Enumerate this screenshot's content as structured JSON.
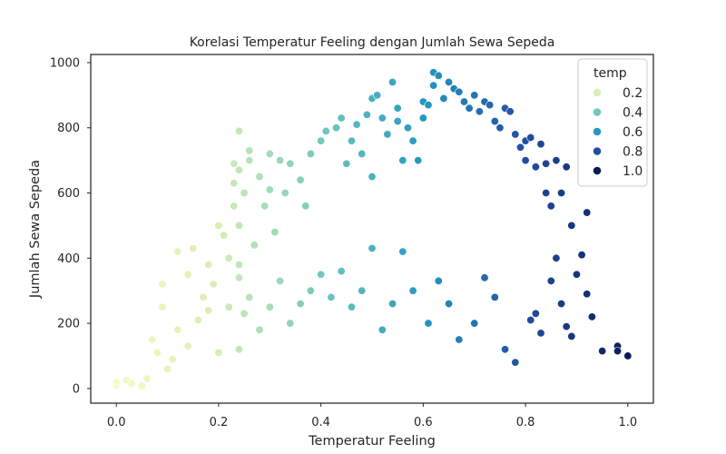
{
  "chart_data": {
    "type": "scatter",
    "title": "Korelasi Temperatur Feeling dengan Jumlah Sewa Sepeda",
    "xlabel": "Temperatur Feeling",
    "ylabel": "Jumlah Sewa Sepeda",
    "xlim": [
      -0.05,
      1.05
    ],
    "ylim": [
      -45,
      1025
    ],
    "xticks": [
      0.0,
      0.2,
      0.4,
      0.6,
      0.8,
      1.0
    ],
    "xtick_labels": [
      "0.0",
      "0.2",
      "0.4",
      "0.6",
      "0.8",
      "1.0"
    ],
    "yticks": [
      0,
      200,
      400,
      600,
      800,
      1000
    ],
    "ytick_labels": [
      "0",
      "200",
      "400",
      "600",
      "800",
      "1000"
    ],
    "grid": false,
    "hue_variable": "temp",
    "colormap": "YlGnBu",
    "legend": {
      "title": "temp",
      "placement": "top-right",
      "entries": [
        {
          "label": "0.2",
          "value": 0.2,
          "color": "#d6efb3"
        },
        {
          "label": "0.4",
          "value": 0.4,
          "color": "#73c8bd"
        },
        {
          "label": "0.6",
          "value": 0.6,
          "color": "#2498c1"
        },
        {
          "label": "0.8",
          "value": 0.8,
          "color": "#234da0"
        },
        {
          "label": "1.0",
          "value": 1.0,
          "color": "#081d58"
        }
      ]
    },
    "series": [
      {
        "points": [
          [
            0.0,
            10
          ],
          [
            0.0,
            20
          ],
          [
            0.02,
            25
          ],
          [
            0.03,
            15
          ],
          [
            0.05,
            8
          ],
          [
            0.06,
            30
          ],
          [
            0.07,
            150
          ],
          [
            0.08,
            110
          ],
          [
            0.09,
            250
          ],
          [
            0.09,
            320
          ],
          [
            0.1,
            60
          ],
          [
            0.11,
            90
          ],
          [
            0.12,
            180
          ],
          [
            0.12,
            420
          ],
          [
            0.14,
            350
          ],
          [
            0.14,
            130
          ],
          [
            0.15,
            430
          ],
          [
            0.16,
            210
          ],
          [
            0.17,
            280
          ],
          [
            0.18,
            240
          ],
          [
            0.18,
            380
          ],
          [
            0.19,
            320
          ],
          [
            0.2,
            500
          ],
          [
            0.2,
            110
          ],
          [
            0.21,
            470
          ],
          [
            0.22,
            400
          ],
          [
            0.22,
            250
          ],
          [
            0.23,
            560
          ],
          [
            0.23,
            630
          ],
          [
            0.23,
            690
          ],
          [
            0.24,
            790
          ],
          [
            0.24,
            670
          ],
          [
            0.24,
            500
          ],
          [
            0.24,
            380
          ],
          [
            0.24,
            340
          ],
          [
            0.25,
            600
          ],
          [
            0.25,
            230
          ],
          [
            0.26,
            730
          ],
          [
            0.26,
            700
          ],
          [
            0.27,
            440
          ],
          [
            0.28,
            650
          ],
          [
            0.29,
            560
          ],
          [
            0.3,
            720
          ],
          [
            0.3,
            610
          ],
          [
            0.31,
            480
          ],
          [
            0.32,
            700
          ],
          [
            0.33,
            600
          ],
          [
            0.34,
            690
          ],
          [
            0.36,
            640
          ],
          [
            0.37,
            560
          ],
          [
            0.38,
            720
          ],
          [
            0.4,
            760
          ],
          [
            0.41,
            790
          ],
          [
            0.43,
            800
          ],
          [
            0.44,
            830
          ],
          [
            0.45,
            690
          ],
          [
            0.46,
            760
          ],
          [
            0.47,
            810
          ],
          [
            0.48,
            720
          ],
          [
            0.49,
            840
          ],
          [
            0.5,
            890
          ],
          [
            0.5,
            650
          ],
          [
            0.51,
            900
          ],
          [
            0.52,
            830
          ],
          [
            0.53,
            780
          ],
          [
            0.54,
            940
          ],
          [
            0.55,
            860
          ],
          [
            0.55,
            820
          ],
          [
            0.56,
            700
          ],
          [
            0.57,
            800
          ],
          [
            0.58,
            760
          ],
          [
            0.59,
            700
          ],
          [
            0.6,
            880
          ],
          [
            0.6,
            830
          ],
          [
            0.61,
            870
          ],
          [
            0.62,
            970
          ],
          [
            0.62,
            930
          ],
          [
            0.63,
            960
          ],
          [
            0.64,
            890
          ],
          [
            0.65,
            940
          ],
          [
            0.66,
            920
          ],
          [
            0.67,
            910
          ],
          [
            0.68,
            880
          ],
          [
            0.69,
            860
          ],
          [
            0.7,
            900
          ],
          [
            0.71,
            850
          ],
          [
            0.72,
            880
          ],
          [
            0.73,
            870
          ],
          [
            0.74,
            820
          ],
          [
            0.75,
            800
          ],
          [
            0.76,
            860
          ],
          [
            0.77,
            850
          ],
          [
            0.78,
            780
          ],
          [
            0.79,
            740
          ],
          [
            0.8,
            760
          ],
          [
            0.8,
            700
          ],
          [
            0.81,
            770
          ],
          [
            0.82,
            680
          ],
          [
            0.83,
            750
          ],
          [
            0.84,
            600
          ],
          [
            0.84,
            690
          ],
          [
            0.85,
            560
          ],
          [
            0.86,
            700
          ],
          [
            0.87,
            600
          ],
          [
            0.88,
            680
          ],
          [
            0.89,
            500
          ],
          [
            0.9,
            350
          ],
          [
            0.91,
            410
          ],
          [
            0.92,
            540
          ],
          [
            0.92,
            290
          ],
          [
            0.93,
            220
          ],
          [
            0.95,
            115
          ],
          [
            0.98,
            130
          ],
          [
            0.98,
            115
          ],
          [
            1.0,
            100
          ],
          [
            0.87,
            260
          ],
          [
            0.88,
            190
          ],
          [
            0.89,
            160
          ],
          [
            0.86,
            400
          ],
          [
            0.85,
            330
          ],
          [
            0.83,
            170
          ],
          [
            0.82,
            230
          ],
          [
            0.81,
            210
          ],
          [
            0.78,
            80
          ],
          [
            0.76,
            120
          ],
          [
            0.74,
            280
          ],
          [
            0.72,
            340
          ],
          [
            0.7,
            200
          ],
          [
            0.67,
            150
          ],
          [
            0.65,
            260
          ],
          [
            0.63,
            330
          ],
          [
            0.61,
            200
          ],
          [
            0.58,
            300
          ],
          [
            0.56,
            420
          ],
          [
            0.54,
            260
          ],
          [
            0.52,
            180
          ],
          [
            0.5,
            430
          ],
          [
            0.48,
            300
          ],
          [
            0.46,
            250
          ],
          [
            0.44,
            360
          ],
          [
            0.42,
            280
          ],
          [
            0.4,
            350
          ],
          [
            0.38,
            300
          ],
          [
            0.36,
            260
          ],
          [
            0.34,
            200
          ],
          [
            0.32,
            330
          ],
          [
            0.3,
            250
          ],
          [
            0.28,
            180
          ],
          [
            0.26,
            280
          ],
          [
            0.24,
            120
          ]
        ]
      }
    ]
  }
}
